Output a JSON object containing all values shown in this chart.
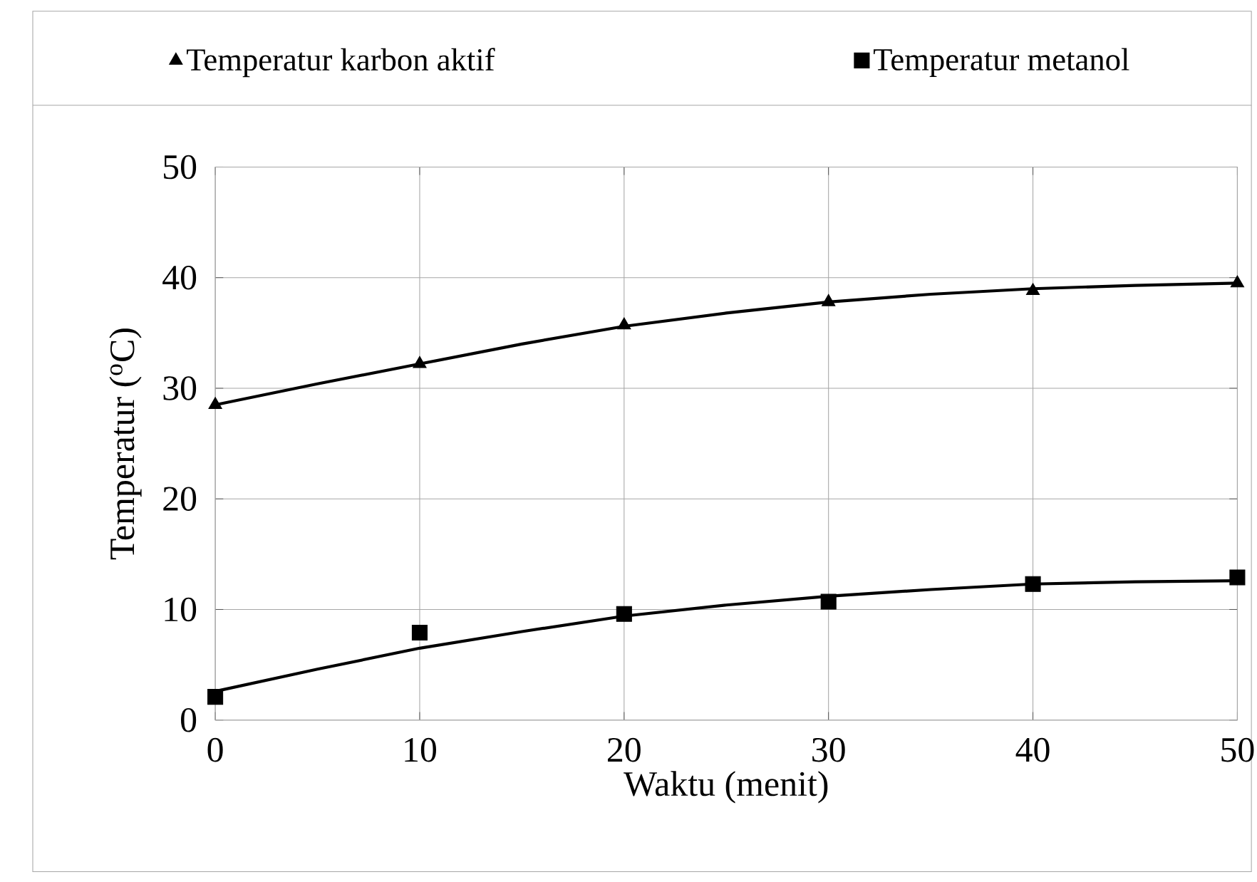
{
  "chart_data": {
    "type": "scatter",
    "xlabel": "Waktu (menit)",
    "ylabel": "Temperatur ($^{o}$C)",
    "xlim": [
      0,
      50
    ],
    "xticks": [
      0,
      10,
      20,
      30,
      40,
      50
    ],
    "ylim": [
      0,
      50
    ],
    "yticks": [
      0,
      10,
      20,
      30,
      40,
      50
    ],
    "grid": true,
    "legend": "top",
    "series": [
      {
        "name": "Temperatur karbon aktif",
        "marker": "triangle",
        "color": "#000000",
        "x": [
          0,
          10,
          20,
          30,
          40,
          50
        ],
        "values": [
          28.5,
          32.2,
          35.7,
          37.8,
          38.8,
          39.5
        ]
      },
      {
        "name": "Temperatur metanol",
        "marker": "square",
        "color": "#000000",
        "x": [
          0,
          10,
          20,
          30,
          40,
          50
        ],
        "values": [
          2.1,
          7.9,
          9.6,
          10.7,
          12.3,
          12.9
        ]
      },
      {
        "type": "line",
        "marker": "none",
        "line_style": "solid",
        "color": "#000000",
        "x": [
          0,
          5,
          10,
          15,
          20,
          25,
          30,
          35,
          40,
          45,
          50
        ],
        "values": [
          28.5,
          30.4,
          32.2,
          34.0,
          35.6,
          36.8,
          37.8,
          38.5,
          39.0,
          39.3,
          39.5
        ]
      },
      {
        "type": "line",
        "marker": "none",
        "line_style": "solid",
        "color": "#000000",
        "x": [
          0,
          5,
          10,
          15,
          20,
          25,
          30,
          35,
          40,
          45,
          50
        ],
        "values": [
          2.6,
          4.6,
          6.5,
          8.0,
          9.4,
          10.4,
          11.2,
          11.8,
          12.3,
          12.5,
          12.6
        ]
      }
    ]
  }
}
